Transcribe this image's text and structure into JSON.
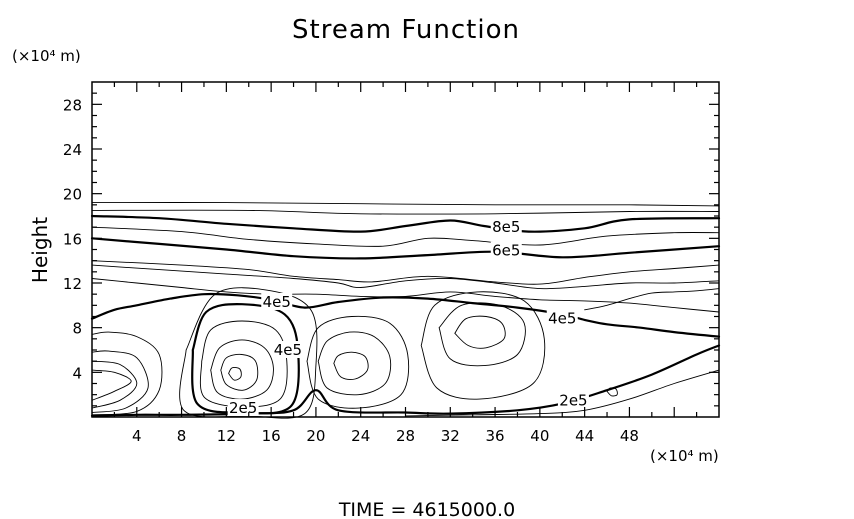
{
  "chart_data": {
    "type": "contour",
    "title": "Stream Function",
    "xlabel": "",
    "ylabel": "Height",
    "x_unit": "(×10⁴ m)",
    "y_unit": "(×10⁴ m)",
    "time_label": "TIME  =  4615000.0",
    "xlim": [
      0,
      56
    ],
    "ylim": [
      0,
      30
    ],
    "x_ticks": [
      4,
      8,
      12,
      16,
      20,
      24,
      28,
      32,
      36,
      40,
      44,
      48
    ],
    "y_ticks": [
      4,
      8,
      12,
      16,
      20,
      24,
      28
    ],
    "contour_labels": [
      {
        "text": "8e5",
        "x": 37,
        "y": 17.0
      },
      {
        "text": "6e5",
        "x": 37,
        "y": 14.9
      },
      {
        "text": "4e5",
        "x": 16.5,
        "y": 10.3
      },
      {
        "text": "4e5",
        "x": 17.5,
        "y": 6.0
      },
      {
        "text": "4e5",
        "x": 42,
        "y": 8.8
      },
      {
        "text": "2e5",
        "x": 13.5,
        "y": 0.8
      },
      {
        "text": "2e5",
        "x": 43,
        "y": 1.5
      }
    ],
    "contour_lines": [
      {
        "level": "thin",
        "bold": false,
        "points": [
          [
            0,
            19.2
          ],
          [
            12,
            19.2
          ],
          [
            24,
            19.1
          ],
          [
            36,
            19.0
          ],
          [
            48,
            19.0
          ],
          [
            56,
            18.9
          ]
        ]
      },
      {
        "level": "thin",
        "bold": false,
        "points": [
          [
            0,
            18.5
          ],
          [
            14,
            18.5
          ],
          [
            24,
            18.2
          ],
          [
            36,
            18.2
          ],
          [
            48,
            18.4
          ],
          [
            56,
            18.4
          ]
        ]
      },
      {
        "level": "8e5",
        "bold": true,
        "points": [
          [
            0,
            18.0
          ],
          [
            6,
            17.8
          ],
          [
            12,
            17.3
          ],
          [
            18,
            16.9
          ],
          [
            24,
            16.6
          ],
          [
            28,
            17.1
          ],
          [
            32,
            17.6
          ],
          [
            35,
            17.1
          ],
          [
            39,
            16.6
          ],
          [
            44,
            16.9
          ],
          [
            48,
            17.7
          ],
          [
            56,
            17.8
          ]
        ]
      },
      {
        "level": "thin",
        "bold": false,
        "points": [
          [
            0,
            17.0
          ],
          [
            8,
            16.6
          ],
          [
            14,
            15.9
          ],
          [
            20,
            15.5
          ],
          [
            26,
            15.3
          ],
          [
            30,
            16.0
          ],
          [
            34,
            15.8
          ],
          [
            40,
            15.4
          ],
          [
            46,
            16.2
          ],
          [
            52,
            16.5
          ],
          [
            56,
            16.5
          ]
        ]
      },
      {
        "level": "6e5",
        "bold": true,
        "points": [
          [
            0,
            16.0
          ],
          [
            6,
            15.5
          ],
          [
            12,
            15.0
          ],
          [
            18,
            14.4
          ],
          [
            24,
            14.2
          ],
          [
            30,
            14.5
          ],
          [
            36,
            14.8
          ],
          [
            42,
            14.3
          ],
          [
            48,
            14.7
          ],
          [
            56,
            15.3
          ]
        ]
      },
      {
        "level": "thin",
        "bold": false,
        "points": [
          [
            0,
            14.0
          ],
          [
            8,
            13.6
          ],
          [
            14,
            13.2
          ],
          [
            18,
            12.6
          ],
          [
            22,
            12.3
          ],
          [
            25,
            12.1
          ],
          [
            30,
            12.6
          ],
          [
            36,
            12.1
          ],
          [
            40,
            11.9
          ],
          [
            44,
            12.5
          ],
          [
            48,
            13.0
          ],
          [
            52,
            13.3
          ],
          [
            56,
            13.6
          ]
        ]
      },
      {
        "level": "thin",
        "bold": false,
        "points": [
          [
            0,
            13.6
          ],
          [
            6,
            13.2
          ],
          [
            12,
            12.8
          ],
          [
            18,
            12.4
          ],
          [
            22,
            12.0
          ],
          [
            24,
            11.6
          ],
          [
            28,
            12.2
          ],
          [
            32,
            12.4
          ],
          [
            36,
            12.0
          ],
          [
            40,
            11.5
          ],
          [
            44,
            11.7
          ],
          [
            48,
            12.0
          ],
          [
            52,
            12.0
          ],
          [
            56,
            12.2
          ]
        ]
      },
      {
        "level": "4e5",
        "bold": true,
        "points": [
          [
            0,
            8.8
          ],
          [
            2,
            9.6
          ],
          [
            4,
            10.0
          ],
          [
            7,
            10.6
          ],
          [
            10,
            11.0
          ],
          [
            13,
            10.9
          ],
          [
            16,
            10.5
          ],
          [
            19,
            9.8
          ],
          [
            22,
            10.3
          ],
          [
            26,
            10.7
          ],
          [
            30,
            10.6
          ],
          [
            34,
            10.2
          ],
          [
            38,
            9.8
          ],
          [
            42,
            9.2
          ],
          [
            44,
            8.7
          ],
          [
            46,
            8.3
          ],
          [
            49,
            8.0
          ],
          [
            52,
            7.6
          ],
          [
            56,
            7.2
          ]
        ]
      },
      {
        "level": "thin",
        "bold": false,
        "points": [
          [
            0,
            12.4
          ],
          [
            4,
            12.0
          ],
          [
            8,
            11.6
          ],
          [
            12,
            11.2
          ],
          [
            16,
            11.0
          ],
          [
            20,
            11.0
          ],
          [
            24,
            10.8
          ],
          [
            28,
            10.8
          ],
          [
            32,
            11.2
          ],
          [
            36,
            10.8
          ],
          [
            40,
            10.5
          ],
          [
            44,
            10.4
          ],
          [
            48,
            10.2
          ],
          [
            52,
            9.8
          ],
          [
            56,
            9.4
          ]
        ]
      },
      {
        "level": "thin",
        "bold": false,
        "points": [
          [
            0,
            1.5
          ],
          [
            2,
            2.3
          ],
          [
            3.5,
            3.2
          ],
          [
            2,
            4.0
          ],
          [
            0,
            4.2
          ]
        ]
      },
      {
        "level": "thin",
        "bold": false,
        "points": [
          [
            0,
            0.8
          ],
          [
            2.5,
            1.5
          ],
          [
            4,
            3.0
          ],
          [
            2.5,
            4.7
          ],
          [
            0,
            5.0
          ]
        ]
      },
      {
        "level": "thin",
        "bold": false,
        "points": [
          [
            0,
            0.4
          ],
          [
            3,
            0.8
          ],
          [
            5,
            2.6
          ],
          [
            4,
            5.3
          ],
          [
            1.5,
            5.9
          ],
          [
            0,
            5.8
          ]
        ]
      },
      {
        "level": "thin",
        "bold": false,
        "points": [
          [
            0,
            0.2
          ],
          [
            4,
            0.5
          ],
          [
            6,
            2.4
          ],
          [
            6,
            5.6
          ],
          [
            4,
            7.2
          ],
          [
            1.5,
            7.6
          ],
          [
            0,
            7.4
          ]
        ]
      },
      {
        "level": "thin",
        "bold": false,
        "points": [
          [
            12.2,
            3.9
          ],
          [
            12.7,
            3.3
          ],
          [
            13.3,
            3.6
          ],
          [
            13.2,
            4.3
          ],
          [
            12.5,
            4.4
          ],
          [
            12.2,
            3.9
          ]
        ]
      },
      {
        "level": "thin",
        "bold": false,
        "points": [
          [
            11.5,
            4.2
          ],
          [
            12.0,
            2.9
          ],
          [
            13.5,
            2.4
          ],
          [
            14.7,
            3.3
          ],
          [
            14.6,
            5.0
          ],
          [
            13.4,
            5.6
          ],
          [
            12.0,
            5.3
          ],
          [
            11.5,
            4.2
          ]
        ]
      },
      {
        "level": "thin",
        "bold": false,
        "points": [
          [
            10.6,
            4.2
          ],
          [
            11.2,
            2.2
          ],
          [
            13.4,
            1.6
          ],
          [
            15.6,
            2.4
          ],
          [
            16.2,
            4.4
          ],
          [
            15.4,
            6.2
          ],
          [
            13.4,
            6.9
          ],
          [
            11.4,
            6.2
          ],
          [
            10.6,
            4.2
          ]
        ]
      },
      {
        "level": "thin",
        "bold": false,
        "points": [
          [
            9.8,
            5.0
          ],
          [
            10.0,
            1.8
          ],
          [
            13.4,
            0.9
          ],
          [
            16.8,
            1.6
          ],
          [
            17.4,
            5.0
          ],
          [
            16.4,
            7.8
          ],
          [
            13.4,
            8.6
          ],
          [
            10.6,
            7.8
          ],
          [
            9.8,
            5.0
          ]
        ]
      },
      {
        "level": "4e5",
        "bold": true,
        "points": [
          [
            9,
            6.0
          ],
          [
            9.4,
            1.2
          ],
          [
            13.4,
            0.4
          ],
          [
            17.8,
            1.0
          ],
          [
            18.4,
            6.0
          ],
          [
            17.2,
            9.2
          ],
          [
            13.4,
            10.1
          ],
          [
            10.2,
            9.4
          ],
          [
            9,
            6.0
          ]
        ]
      },
      {
        "level": "thin",
        "bold": false,
        "points": [
          [
            21.6,
            4.8
          ],
          [
            22.2,
            3.6
          ],
          [
            23.5,
            3.4
          ],
          [
            24.6,
            4.2
          ],
          [
            24.4,
            5.4
          ],
          [
            23.2,
            5.8
          ],
          [
            22.0,
            5.5
          ],
          [
            21.6,
            4.8
          ]
        ]
      },
      {
        "level": "thin",
        "bold": false,
        "points": [
          [
            20.2,
            5.0
          ],
          [
            21.0,
            2.6
          ],
          [
            23.8,
            2.0
          ],
          [
            26.2,
            3.0
          ],
          [
            26.6,
            5.4
          ],
          [
            25.2,
            7.2
          ],
          [
            23.0,
            7.6
          ],
          [
            21.0,
            6.8
          ],
          [
            20.2,
            5.0
          ]
        ]
      },
      {
        "level": "thin",
        "bold": false,
        "points": [
          [
            19.2,
            5.0
          ],
          [
            20.2,
            1.6
          ],
          [
            23.8,
            0.8
          ],
          [
            27.6,
            2.0
          ],
          [
            28.2,
            5.6
          ],
          [
            26.6,
            8.4
          ],
          [
            23.2,
            9.0
          ],
          [
            20.2,
            8.0
          ],
          [
            19.2,
            5.0
          ]
        ]
      },
      {
        "level": "thin",
        "bold": false,
        "points": [
          [
            32.4,
            7.5
          ],
          [
            33.6,
            6.4
          ],
          [
            35.2,
            6.2
          ],
          [
            36.8,
            7.0
          ],
          [
            36.6,
            8.4
          ],
          [
            35.2,
            9.0
          ],
          [
            33.4,
            8.8
          ],
          [
            32.4,
            7.5
          ]
        ]
      },
      {
        "level": "thin",
        "bold": false,
        "points": [
          [
            31.0,
            8.0
          ],
          [
            32.0,
            5.2
          ],
          [
            35.0,
            4.6
          ],
          [
            38.0,
            5.6
          ],
          [
            38.6,
            8.4
          ],
          [
            36.4,
            10.0
          ],
          [
            33.0,
            10.0
          ],
          [
            31.0,
            8.0
          ]
        ]
      },
      {
        "level": "thin",
        "bold": false,
        "points": [
          [
            29.4,
            6.4
          ],
          [
            30.8,
            2.6
          ],
          [
            34.6,
            1.6
          ],
          [
            39.4,
            3.0
          ],
          [
            40.4,
            7.0
          ],
          [
            38.6,
            10.4
          ],
          [
            34.4,
            11.2
          ],
          [
            30.6,
            10.0
          ],
          [
            29.4,
            6.4
          ]
        ]
      },
      {
        "level": "thin",
        "bold": false,
        "points": [
          [
            8.4,
            6.0
          ],
          [
            8.2,
            0.6
          ],
          [
            14,
            0.1
          ],
          [
            19,
            0.3
          ],
          [
            20,
            4.6
          ],
          [
            19.6,
            9.5
          ],
          [
            16,
            11.3
          ],
          [
            11,
            11.0
          ],
          [
            8.4,
            6.0
          ]
        ]
      },
      {
        "level": "2e5",
        "bold": true,
        "points": [
          [
            0,
            0.1
          ],
          [
            4,
            0.2
          ],
          [
            8,
            0.2
          ],
          [
            14,
            0.3
          ],
          [
            18,
            0.6
          ],
          [
            20,
            2.4
          ],
          [
            22,
            0.6
          ],
          [
            28,
            0.4
          ],
          [
            32,
            0.3
          ],
          [
            38,
            0.6
          ],
          [
            42,
            1.2
          ],
          [
            46,
            2.4
          ],
          [
            50,
            3.8
          ],
          [
            54,
            5.6
          ],
          [
            56,
            6.4
          ]
        ]
      },
      {
        "level": "thin",
        "bold": false,
        "points": [
          [
            28,
            0.1
          ],
          [
            34,
            0.2
          ],
          [
            40,
            0.3
          ],
          [
            44,
            0.6
          ],
          [
            48,
            1.6
          ],
          [
            52,
            3.0
          ],
          [
            56,
            4.2
          ]
        ]
      },
      {
        "level": "thin",
        "bold": false,
        "points": [
          [
            46,
            2.3
          ],
          [
            46.4,
            1.9
          ],
          [
            46.9,
            2.0
          ],
          [
            46.8,
            2.5
          ],
          [
            46.3,
            2.6
          ],
          [
            46,
            2.3
          ]
        ]
      },
      {
        "level": "thin",
        "bold": false,
        "points": [
          [
            44,
            9.6
          ],
          [
            46,
            10.0
          ],
          [
            48,
            10.6
          ],
          [
            50,
            11.1
          ],
          [
            52,
            11.2
          ],
          [
            54,
            11.3
          ],
          [
            56,
            11.5
          ]
        ]
      }
    ]
  }
}
